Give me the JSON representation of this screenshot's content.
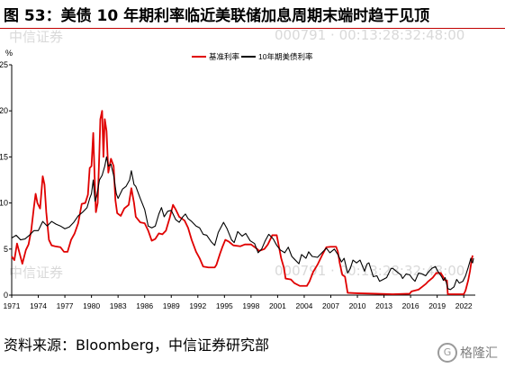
{
  "figure": {
    "title": "图 53：美债 10 年期利率临近美联储加息周期末端时趋于见顶",
    "source": "资料来源：Bloomberg，中信证券研究部",
    "watermark_left": "中信证券",
    "watermark_right": "000791 · 00:13:28:32:48:00",
    "logo_text": "格隆汇"
  },
  "chart_data": {
    "type": "line",
    "ylabel": "%",
    "ylim": [
      0,
      25
    ],
    "yticks": [
      0,
      5,
      10,
      15,
      20,
      25
    ],
    "xlim": [
      1971,
      2023.3
    ],
    "xticks": [
      "1971",
      "1974",
      "1977",
      "1980",
      "1983",
      "1986",
      "1989",
      "1992",
      "1995",
      "1998",
      "2001",
      "2004",
      "2007",
      "2010",
      "2013",
      "2016",
      "2019",
      "2022"
    ],
    "legend": {
      "placement": "top-center"
    },
    "series": [
      {
        "name": "基准利率",
        "color": "#e00000",
        "points": [
          [
            1971.0,
            4.2
          ],
          [
            1971.3,
            3.8
          ],
          [
            1971.6,
            5.6
          ],
          [
            1971.9,
            4.5
          ],
          [
            1972.2,
            3.4
          ],
          [
            1972.6,
            4.9
          ],
          [
            1972.9,
            5.5
          ],
          [
            1973.2,
            7.0
          ],
          [
            1973.5,
            9.5
          ],
          [
            1973.7,
            11.0
          ],
          [
            1973.9,
            10.0
          ],
          [
            1974.2,
            9.4
          ],
          [
            1974.5,
            12.9
          ],
          [
            1974.7,
            12.0
          ],
          [
            1974.9,
            9.0
          ],
          [
            1975.2,
            6.0
          ],
          [
            1975.5,
            5.4
          ],
          [
            1975.9,
            5.3
          ],
          [
            1976.5,
            5.2
          ],
          [
            1976.9,
            4.7
          ],
          [
            1977.3,
            4.7
          ],
          [
            1977.7,
            6.0
          ],
          [
            1978.1,
            6.7
          ],
          [
            1978.5,
            7.8
          ],
          [
            1978.9,
            9.9
          ],
          [
            1979.3,
            10.0
          ],
          [
            1979.6,
            10.9
          ],
          [
            1979.8,
            13.8
          ],
          [
            1980.0,
            14.0
          ],
          [
            1980.2,
            17.6
          ],
          [
            1980.35,
            13.0
          ],
          [
            1980.5,
            9.0
          ],
          [
            1980.7,
            10.0
          ],
          [
            1980.9,
            15.8
          ],
          [
            1981.0,
            19.1
          ],
          [
            1981.2,
            20.0
          ],
          [
            1981.35,
            15.0
          ],
          [
            1981.5,
            19.1
          ],
          [
            1981.7,
            17.8
          ],
          [
            1981.9,
            13.3
          ],
          [
            1982.2,
            14.8
          ],
          [
            1982.5,
            14.0
          ],
          [
            1982.7,
            10.3
          ],
          [
            1982.9,
            8.9
          ],
          [
            1983.3,
            8.6
          ],
          [
            1983.7,
            9.4
          ],
          [
            1984.2,
            9.8
          ],
          [
            1984.5,
            11.6
          ],
          [
            1984.8,
            10.0
          ],
          [
            1985.0,
            8.5
          ],
          [
            1985.5,
            7.9
          ],
          [
            1986.0,
            7.8
          ],
          [
            1986.4,
            7.0
          ],
          [
            1986.8,
            5.9
          ],
          [
            1987.2,
            6.1
          ],
          [
            1987.6,
            6.7
          ],
          [
            1988.0,
            6.6
          ],
          [
            1988.4,
            7.0
          ],
          [
            1988.8,
            8.3
          ],
          [
            1989.2,
            9.8
          ],
          [
            1989.5,
            9.3
          ],
          [
            1989.9,
            8.5
          ],
          [
            1990.5,
            8.1
          ],
          [
            1990.9,
            7.3
          ],
          [
            1991.3,
            6.0
          ],
          [
            1991.8,
            4.7
          ],
          [
            1992.2,
            4.0
          ],
          [
            1992.6,
            3.1
          ],
          [
            1993.2,
            3.0
          ],
          [
            1993.9,
            3.0
          ],
          [
            1994.1,
            3.3
          ],
          [
            1994.5,
            4.5
          ],
          [
            1994.8,
            5.3
          ],
          [
            1995.1,
            6.0
          ],
          [
            1995.5,
            5.8
          ],
          [
            1996.0,
            5.4
          ],
          [
            1996.8,
            5.3
          ],
          [
            1997.3,
            5.5
          ],
          [
            1998.0,
            5.5
          ],
          [
            1998.7,
            5.0
          ],
          [
            1998.9,
            4.8
          ],
          [
            1999.5,
            5.0
          ],
          [
            1999.9,
            5.5
          ],
          [
            2000.4,
            6.5
          ],
          [
            2000.9,
            6.5
          ],
          [
            2001.1,
            5.5
          ],
          [
            2001.4,
            4.0
          ],
          [
            2001.7,
            3.0
          ],
          [
            2001.9,
            1.8
          ],
          [
            2002.5,
            1.7
          ],
          [
            2002.9,
            1.3
          ],
          [
            2003.5,
            1.0
          ],
          [
            2004.3,
            1.0
          ],
          [
            2004.6,
            1.5
          ],
          [
            2005.0,
            2.5
          ],
          [
            2005.5,
            3.3
          ],
          [
            2006.0,
            4.3
          ],
          [
            2006.5,
            5.2
          ],
          [
            2007.0,
            5.25
          ],
          [
            2007.6,
            5.25
          ],
          [
            2007.8,
            4.7
          ],
          [
            2008.0,
            3.5
          ],
          [
            2008.3,
            2.2
          ],
          [
            2008.6,
            2.0
          ],
          [
            2008.9,
            0.25
          ],
          [
            2010.0,
            0.2
          ],
          [
            2012.0,
            0.15
          ],
          [
            2014.0,
            0.1
          ],
          [
            2015.9,
            0.15
          ],
          [
            2016.1,
            0.4
          ],
          [
            2016.9,
            0.6
          ],
          [
            2017.3,
            0.9
          ],
          [
            2017.7,
            1.2
          ],
          [
            2018.0,
            1.5
          ],
          [
            2018.5,
            1.9
          ],
          [
            2018.9,
            2.4
          ],
          [
            2019.4,
            2.4
          ],
          [
            2019.6,
            2.1
          ],
          [
            2019.9,
            1.6
          ],
          [
            2020.1,
            1.6
          ],
          [
            2020.2,
            0.1
          ],
          [
            2021.5,
            0.1
          ],
          [
            2022.0,
            0.1
          ],
          [
            2022.2,
            0.5
          ],
          [
            2022.5,
            1.6
          ],
          [
            2022.7,
            2.6
          ],
          [
            2022.9,
            3.9
          ],
          [
            2023.0,
            4.3
          ]
        ]
      },
      {
        "name": "10年期美债利率",
        "color": "#000000",
        "points": [
          [
            1971.0,
            6.2
          ],
          [
            1971.5,
            6.5
          ],
          [
            1972.0,
            6.0
          ],
          [
            1972.5,
            6.1
          ],
          [
            1973.0,
            6.5
          ],
          [
            1973.5,
            7.0
          ],
          [
            1974.0,
            7.0
          ],
          [
            1974.5,
            8.0
          ],
          [
            1975.0,
            7.5
          ],
          [
            1975.5,
            8.0
          ],
          [
            1976.0,
            7.7
          ],
          [
            1976.5,
            7.5
          ],
          [
            1977.0,
            7.2
          ],
          [
            1977.5,
            7.4
          ],
          [
            1978.0,
            7.9
          ],
          [
            1978.5,
            8.6
          ],
          [
            1979.0,
            9.0
          ],
          [
            1979.5,
            9.5
          ],
          [
            1979.8,
            10.5
          ],
          [
            1980.0,
            11.0
          ],
          [
            1980.2,
            12.5
          ],
          [
            1980.4,
            10.2
          ],
          [
            1980.6,
            10.8
          ],
          [
            1980.9,
            12.5
          ],
          [
            1981.2,
            13.0
          ],
          [
            1981.5,
            14.0
          ],
          [
            1981.7,
            15.0
          ],
          [
            1981.9,
            14.0
          ],
          [
            1982.2,
            14.2
          ],
          [
            1982.5,
            13.0
          ],
          [
            1982.8,
            11.0
          ],
          [
            1983.0,
            10.5
          ],
          [
            1983.5,
            11.5
          ],
          [
            1983.9,
            11.8
          ],
          [
            1984.3,
            12.5
          ],
          [
            1984.5,
            13.5
          ],
          [
            1984.8,
            12.0
          ],
          [
            1985.0,
            11.8
          ],
          [
            1985.5,
            10.5
          ],
          [
            1986.0,
            9.3
          ],
          [
            1986.4,
            7.5
          ],
          [
            1986.8,
            7.3
          ],
          [
            1987.2,
            7.5
          ],
          [
            1987.6,
            8.8
          ],
          [
            1987.9,
            9.5
          ],
          [
            1988.2,
            8.5
          ],
          [
            1988.6,
            9.1
          ],
          [
            1989.0,
            9.2
          ],
          [
            1989.5,
            8.2
          ],
          [
            1989.9,
            7.9
          ],
          [
            1990.3,
            8.5
          ],
          [
            1990.6,
            8.8
          ],
          [
            1990.9,
            8.3
          ],
          [
            1991.3,
            8.0
          ],
          [
            1991.8,
            7.5
          ],
          [
            1992.2,
            7.3
          ],
          [
            1992.6,
            6.6
          ],
          [
            1993.0,
            6.5
          ],
          [
            1993.5,
            5.8
          ],
          [
            1993.9,
            5.4
          ],
          [
            1994.3,
            6.8
          ],
          [
            1994.9,
            7.9
          ],
          [
            1995.3,
            7.2
          ],
          [
            1995.8,
            6.0
          ],
          [
            1996.1,
            5.7
          ],
          [
            1996.5,
            6.9
          ],
          [
            1997.0,
            6.4
          ],
          [
            1997.4,
            6.7
          ],
          [
            1997.9,
            5.9
          ],
          [
            1998.4,
            5.6
          ],
          [
            1998.8,
            4.6
          ],
          [
            1999.2,
            5.0
          ],
          [
            1999.6,
            5.9
          ],
          [
            2000.0,
            6.6
          ],
          [
            2000.5,
            6.1
          ],
          [
            2000.9,
            5.4
          ],
          [
            2001.3,
            4.9
          ],
          [
            2001.8,
            4.6
          ],
          [
            2002.2,
            5.2
          ],
          [
            2002.6,
            4.2
          ],
          [
            2002.9,
            3.9
          ],
          [
            2003.4,
            3.4
          ],
          [
            2003.7,
            4.4
          ],
          [
            2004.2,
            4.0
          ],
          [
            2004.5,
            4.7
          ],
          [
            2004.9,
            4.2
          ],
          [
            2005.5,
            4.1
          ],
          [
            2005.9,
            4.5
          ],
          [
            2006.5,
            5.1
          ],
          [
            2006.9,
            4.6
          ],
          [
            2007.4,
            5.0
          ],
          [
            2007.8,
            4.4
          ],
          [
            2008.2,
            3.6
          ],
          [
            2008.5,
            4.0
          ],
          [
            2008.9,
            2.4
          ],
          [
            2009.2,
            2.9
          ],
          [
            2009.5,
            3.8
          ],
          [
            2009.9,
            3.5
          ],
          [
            2010.3,
            3.8
          ],
          [
            2010.8,
            2.6
          ],
          [
            2011.1,
            3.4
          ],
          [
            2011.3,
            3.5
          ],
          [
            2011.8,
            2.0
          ],
          [
            2012.2,
            2.1
          ],
          [
            2012.5,
            1.5
          ],
          [
            2012.9,
            1.7
          ],
          [
            2013.3,
            1.9
          ],
          [
            2013.8,
            2.9
          ],
          [
            2014.0,
            2.9
          ],
          [
            2014.5,
            2.5
          ],
          [
            2014.9,
            2.2
          ],
          [
            2015.1,
            1.8
          ],
          [
            2015.5,
            2.3
          ],
          [
            2015.9,
            2.2
          ],
          [
            2016.2,
            1.8
          ],
          [
            2016.5,
            1.5
          ],
          [
            2016.9,
            2.4
          ],
          [
            2017.3,
            2.3
          ],
          [
            2017.7,
            2.1
          ],
          [
            2018.0,
            2.5
          ],
          [
            2018.4,
            2.9
          ],
          [
            2018.8,
            3.1
          ],
          [
            2019.0,
            2.7
          ],
          [
            2019.5,
            2.0
          ],
          [
            2019.7,
            1.6
          ],
          [
            2019.9,
            1.9
          ],
          [
            2020.2,
            0.7
          ],
          [
            2020.5,
            0.6
          ],
          [
            2020.9,
            0.9
          ],
          [
            2021.2,
            1.7
          ],
          [
            2021.5,
            1.3
          ],
          [
            2021.9,
            1.5
          ],
          [
            2022.2,
            2.1
          ],
          [
            2022.5,
            3.0
          ],
          [
            2022.8,
            4.0
          ],
          [
            2022.9,
            3.6
          ],
          [
            2023.0,
            3.5
          ],
          [
            2023.1,
            4.0
          ]
        ]
      }
    ]
  }
}
